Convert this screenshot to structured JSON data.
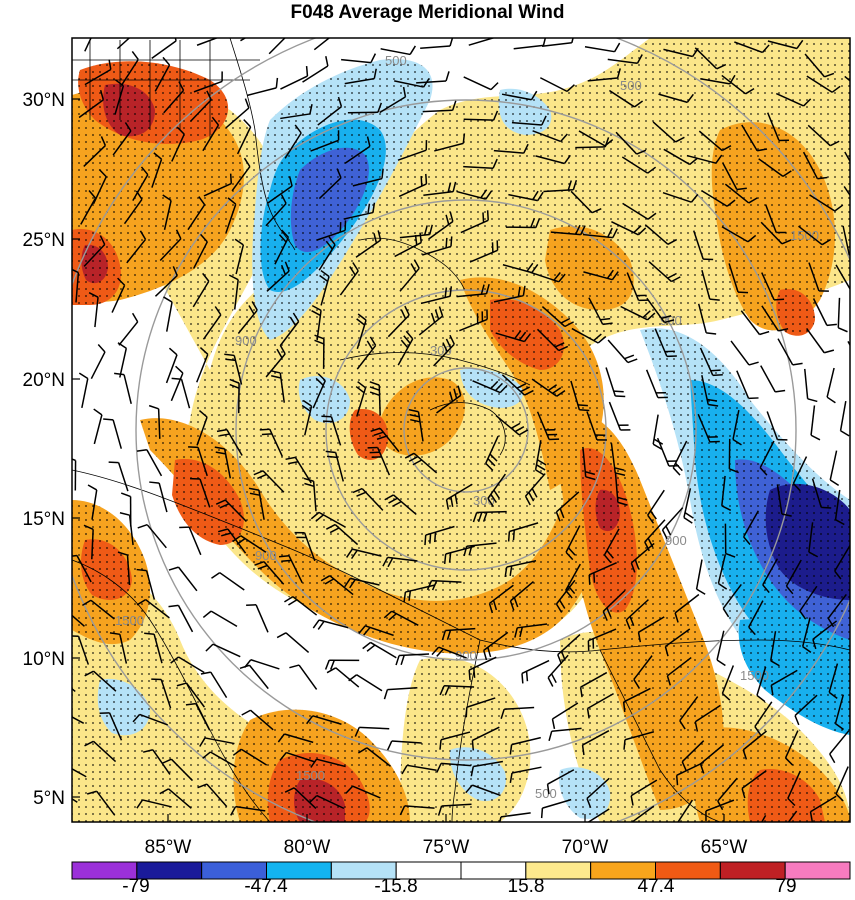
{
  "title": "F048 Average Meridional Wind",
  "lat_labels": [
    "30°N",
    "25°N",
    "20°N",
    "15°N",
    "10°N",
    "5°N"
  ],
  "lon_labels": [
    "85°W",
    "80°W",
    "75°W",
    "70°W",
    "65°W"
  ],
  "ring_labels": [
    "300",
    "500",
    "900",
    "1500"
  ],
  "colorbar": {
    "labels": [
      "-79",
      "-47.4",
      "-15.8",
      "15.8",
      "47.4",
      "79"
    ],
    "colors": [
      "#9b30d9",
      "#1a1a9a",
      "#3b5fd9",
      "#13b4f0",
      "#b5e2f7",
      "#ffffff",
      "#ffffff",
      "#fde98d",
      "#f8a51c",
      "#f05a14",
      "#bf2024",
      "#f77bbf"
    ]
  },
  "palette": {
    "neg_strong": "#1c1c8c",
    "neg_mid": "#3f62d6",
    "neg_light": "#18b0ee",
    "neg_pale": "#b5e2f7",
    "pos_pale": "#fbe68a",
    "pos_mid": "#f6a31f",
    "pos_strong": "#ef5a16",
    "pos_dark": "#b82328",
    "ring": "#9a9a9a"
  }
}
